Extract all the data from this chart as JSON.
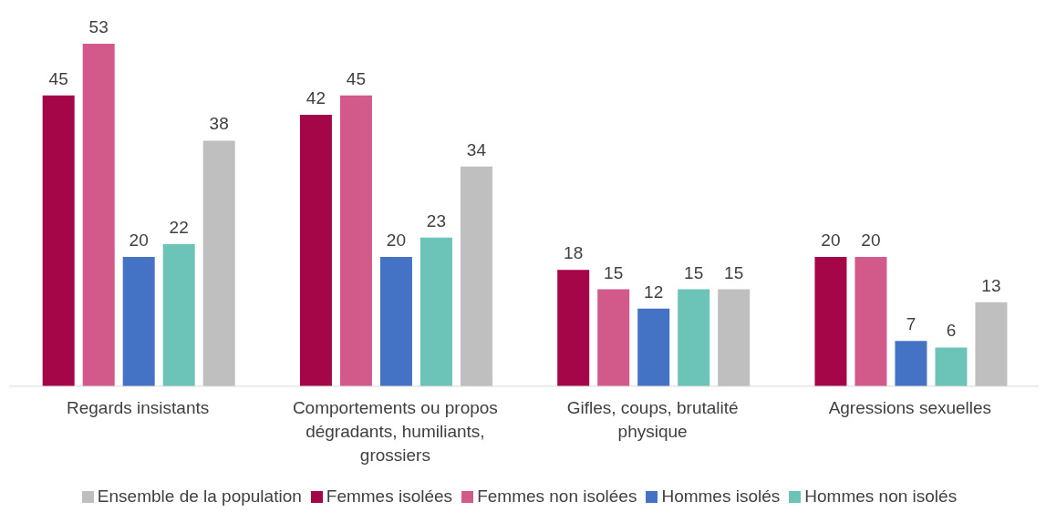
{
  "chart_data": {
    "type": "bar",
    "categories": [
      "Regards insistants",
      "Comportements ou propos dégradants, humiliants, grossiers",
      "Gifles, coups, brutalité physique",
      "Agressions sexuelles"
    ],
    "series": [
      {
        "name": "Femmes isolées",
        "color": "#a50648",
        "values": [
          45,
          42,
          18,
          20
        ]
      },
      {
        "name": "Femmes non isolées",
        "color": "#d15a8a",
        "values": [
          53,
          45,
          15,
          20
        ]
      },
      {
        "name": "Hommes isolés",
        "color": "#4472c4",
        "values": [
          20,
          20,
          12,
          7
        ]
      },
      {
        "name": "Hommes non isolés",
        "color": "#6cc4b8",
        "values": [
          22,
          23,
          15,
          6
        ]
      },
      {
        "name": "Ensemble de la population",
        "color": "#bfbfbf",
        "values": [
          38,
          34,
          15,
          13
        ]
      }
    ],
    "data_labels": true,
    "legend": "bottom",
    "grid": false
  }
}
